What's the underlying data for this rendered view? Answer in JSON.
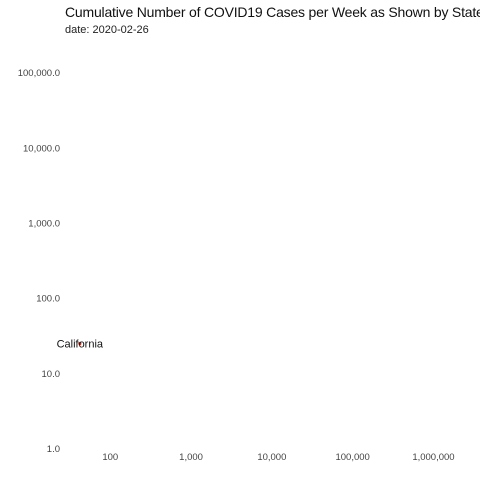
{
  "chart_data": {
    "type": "scatter",
    "title": "Cumulative Number of COVID19 Cases per Week as Shown by State",
    "subtitle": "date: 2020-02-26",
    "xlabel": "",
    "ylabel": "",
    "x_scale": "log",
    "y_scale": "log",
    "xlim": [
      30,
      3000000
    ],
    "ylim": [
      0.75,
      200000
    ],
    "x_ticks": [
      100,
      1000,
      10000,
      100000,
      1000000
    ],
    "x_tick_labels": [
      "100",
      "1,000",
      "10,000",
      "100,000",
      "1,000,000"
    ],
    "y_ticks": [
      1,
      10,
      100,
      1000,
      10000,
      100000
    ],
    "y_tick_labels": [
      "1.0",
      "10.0",
      "100.0",
      "1,000.0",
      "10,000.0",
      "100,000.0"
    ],
    "grid": false,
    "points": [
      {
        "label": "California",
        "x": 42,
        "y": 25,
        "color": "#c0392b"
      }
    ]
  }
}
